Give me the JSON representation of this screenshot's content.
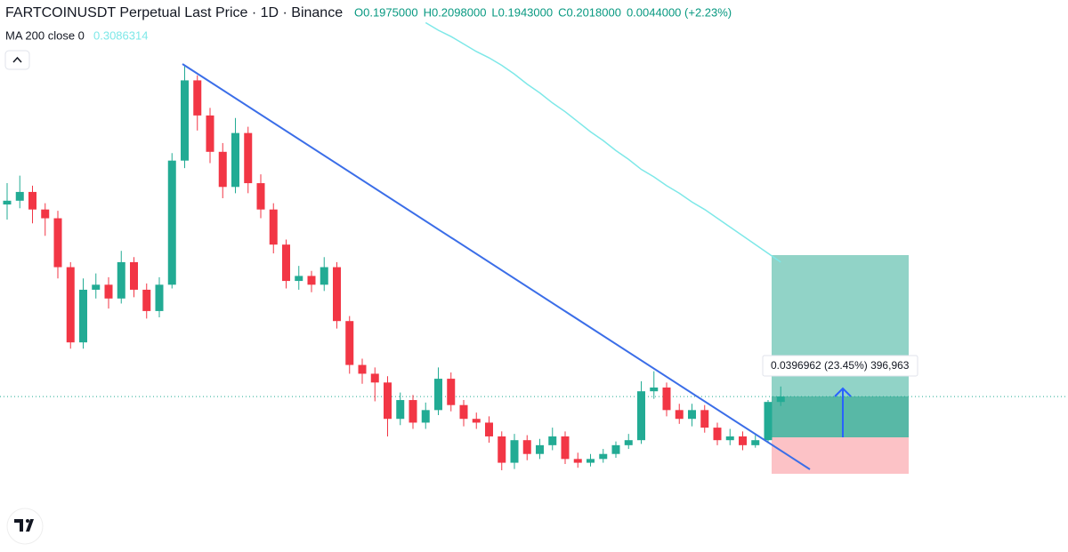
{
  "chart_data": {
    "type": "candlestick",
    "title": "FARTCOINUSDT Perpetual Last Price · 1D · Binance",
    "ohlc_labels": [
      "O0.1975000",
      "H0.2098000",
      "L0.1943000",
      "C0.2018000",
      "0.0044000 (+2.23%)"
    ],
    "ylim": [
      0.0778,
      0.5181
    ],
    "up_color": "#22ab94",
    "down_color": "#f23645",
    "open": [
      0.355,
      0.358,
      0.365,
      0.351,
      0.344,
      0.305,
      0.245,
      0.287,
      0.291,
      0.28,
      0.309,
      0.287,
      0.27,
      0.291,
      0.39,
      0.454,
      0.426,
      0.397,
      0.369,
      0.412,
      0.372,
      0.351,
      0.323,
      0.294,
      0.298,
      0.291,
      0.305,
      0.262,
      0.227,
      0.22,
      0.213,
      0.184,
      0.199,
      0.181,
      0.191,
      0.216,
      0.195,
      0.184,
      0.181,
      0.17,
      0.149,
      0.167,
      0.156,
      0.163,
      0.17,
      0.152,
      0.149,
      0.152,
      0.156,
      0.163,
      0.167,
      0.206,
      0.209,
      0.191,
      0.184,
      0.191,
      0.177,
      0.167,
      0.17,
      0.163,
      0.167,
      0.1975
    ],
    "high": [
      0.372,
      0.378,
      0.37,
      0.356,
      0.35,
      0.309,
      0.296,
      0.3,
      0.297,
      0.318,
      0.313,
      0.292,
      0.297,
      0.396,
      0.466,
      0.458,
      0.432,
      0.404,
      0.424,
      0.417,
      0.379,
      0.356,
      0.327,
      0.306,
      0.302,
      0.313,
      0.309,
      0.266,
      0.232,
      0.225,
      0.218,
      0.205,
      0.203,
      0.197,
      0.225,
      0.221,
      0.199,
      0.189,
      0.186,
      0.174,
      0.172,
      0.171,
      0.168,
      0.177,
      0.174,
      0.157,
      0.156,
      0.16,
      0.166,
      0.172,
      0.214,
      0.222,
      0.213,
      0.196,
      0.196,
      0.195,
      0.181,
      0.176,
      0.174,
      0.171,
      0.199,
      0.2098
    ],
    "low": [
      0.343,
      0.352,
      0.34,
      0.33,
      0.296,
      0.24,
      0.24,
      0.28,
      0.272,
      0.276,
      0.281,
      0.264,
      0.265,
      0.288,
      0.384,
      0.414,
      0.388,
      0.36,
      0.364,
      0.364,
      0.344,
      0.316,
      0.288,
      0.287,
      0.285,
      0.286,
      0.256,
      0.22,
      0.212,
      0.198,
      0.17,
      0.179,
      0.176,
      0.176,
      0.187,
      0.19,
      0.178,
      0.176,
      0.165,
      0.143,
      0.144,
      0.151,
      0.152,
      0.159,
      0.148,
      0.145,
      0.146,
      0.149,
      0.153,
      0.16,
      0.164,
      0.2,
      0.186,
      0.18,
      0.178,
      0.173,
      0.163,
      0.163,
      0.159,
      0.161,
      0.165,
      0.1943
    ],
    "close": [
      0.358,
      0.365,
      0.351,
      0.344,
      0.305,
      0.245,
      0.287,
      0.291,
      0.28,
      0.309,
      0.287,
      0.27,
      0.291,
      0.39,
      0.454,
      0.426,
      0.397,
      0.369,
      0.412,
      0.372,
      0.351,
      0.323,
      0.294,
      0.298,
      0.291,
      0.305,
      0.262,
      0.227,
      0.22,
      0.213,
      0.184,
      0.199,
      0.181,
      0.191,
      0.216,
      0.195,
      0.184,
      0.181,
      0.17,
      0.149,
      0.167,
      0.156,
      0.163,
      0.17,
      0.152,
      0.149,
      0.152,
      0.156,
      0.163,
      0.167,
      0.206,
      0.209,
      0.191,
      0.184,
      0.191,
      0.177,
      0.167,
      0.17,
      0.163,
      0.167,
      0.1975,
      0.2018
    ],
    "ma": {
      "name": "MA 200 close 0",
      "value_label": "0.3086314",
      "color": "#7ee8e8",
      "values": [
        null,
        null,
        null,
        null,
        null,
        null,
        null,
        null,
        null,
        null,
        null,
        null,
        null,
        null,
        null,
        null,
        null,
        null,
        null,
        null,
        null,
        null,
        null,
        null,
        null,
        null,
        null,
        null,
        null,
        null,
        null,
        null,
        null,
        0.5,
        0.494,
        0.489,
        0.483,
        0.477,
        0.472,
        0.466,
        0.459,
        0.451,
        0.444,
        0.436,
        0.429,
        0.421,
        0.413,
        0.406,
        0.398,
        0.391,
        0.383,
        0.377,
        0.37,
        0.364,
        0.357,
        0.351,
        0.344,
        0.337,
        0.33,
        0.323,
        0.316,
        0.309
      ]
    },
    "position_label": "0.0396962 (23.45%) 396,963"
  }
}
